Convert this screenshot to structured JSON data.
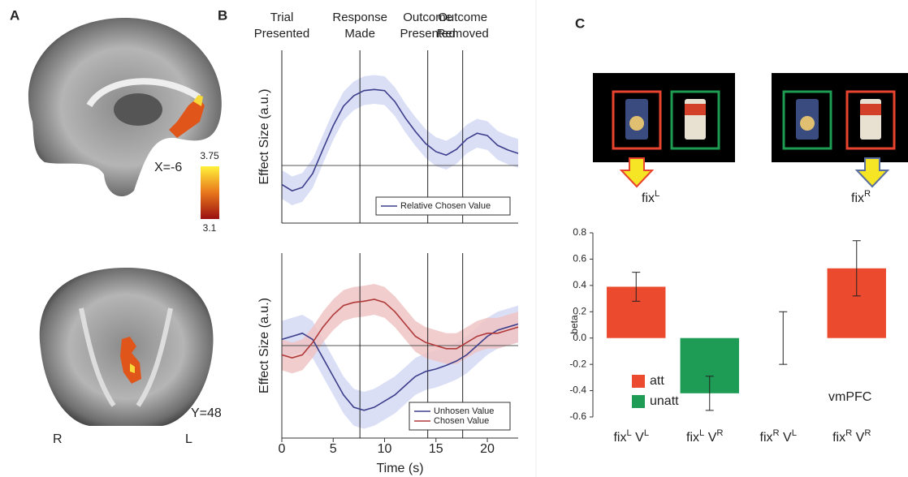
{
  "panel_labels": {
    "a": "A",
    "b": "B",
    "c": "C"
  },
  "brain": {
    "sagittal_label": "X=-6",
    "coronal_label": "Y=48",
    "right": "R",
    "left": "L",
    "colorbar": {
      "max": 3.75,
      "min": 3.1
    }
  },
  "stimuli": [
    {
      "label": [
        "fix",
        "L"
      ]
    },
    {
      "label": [
        "fix",
        "R"
      ]
    }
  ],
  "chart_data": [
    {
      "type": "line",
      "ylabel": "Effect Size (a.u.)",
      "x": [
        0,
        1,
        2,
        3,
        4,
        5,
        6,
        7,
        8,
        9,
        10,
        11,
        12,
        13,
        14,
        15,
        16,
        17,
        18,
        19,
        20,
        21,
        22,
        23
      ],
      "xlim": [
        0,
        23
      ],
      "ylim": [
        -1,
        2
      ],
      "events": [
        {
          "x": 0,
          "label": [
            "Trial",
            "Presented"
          ]
        },
        {
          "x": 7.6,
          "label": [
            "Response",
            "Made"
          ]
        },
        {
          "x": 14.2,
          "label": [
            "Outcome",
            "Presented"
          ]
        },
        {
          "x": 17.6,
          "label": [
            "Outcome",
            "Removed"
          ]
        }
      ],
      "series": [
        {
          "name": "Relative Chosen Value",
          "color": "#3d3f8c",
          "band_color": "#d3d9f4",
          "values": [
            -0.33,
            -0.44,
            -0.38,
            -0.14,
            0.28,
            0.69,
            1.03,
            1.21,
            1.3,
            1.32,
            1.3,
            1.11,
            0.83,
            0.59,
            0.38,
            0.24,
            0.18,
            0.28,
            0.46,
            0.56,
            0.52,
            0.35,
            0.27,
            0.21
          ],
          "errors": [
            0.25,
            0.25,
            0.25,
            0.25,
            0.25,
            0.25,
            0.25,
            0.25,
            0.25,
            0.25,
            0.25,
            0.25,
            0.25,
            0.25,
            0.25,
            0.25,
            0.25,
            0.25,
            0.25,
            0.25,
            0.25,
            0.25,
            0.25,
            0.25
          ]
        }
      ]
    },
    {
      "type": "line",
      "ylabel": "Effect Size (a.u.)",
      "xlabel": "Time (s)",
      "x": [
        0,
        1,
        2,
        3,
        4,
        5,
        6,
        7,
        8,
        9,
        10,
        11,
        12,
        13,
        14,
        15,
        16,
        17,
        18,
        19,
        20,
        21,
        22,
        23
      ],
      "xlim": [
        0,
        23
      ],
      "ylim": [
        -1.5,
        1.5
      ],
      "xticks": [
        0,
        5,
        10,
        15,
        20
      ],
      "event_lines": [
        7.6,
        14.2,
        17.6
      ],
      "series": [
        {
          "name": "Unhosen Value",
          "color": "#3d3f8c",
          "band_color": "#d3d9f4",
          "values": [
            0.1,
            0.15,
            0.2,
            0.1,
            -0.2,
            -0.5,
            -0.8,
            -1.0,
            -1.05,
            -1.0,
            -0.9,
            -0.8,
            -0.65,
            -0.5,
            -0.42,
            -0.38,
            -0.32,
            -0.25,
            -0.15,
            0,
            0.15,
            0.25,
            0.3,
            0.35
          ],
          "errors": [
            0.3,
            0.3,
            0.3,
            0.3,
            0.3,
            0.3,
            0.3,
            0.3,
            0.3,
            0.3,
            0.3,
            0.3,
            0.3,
            0.3,
            0.3,
            0.3,
            0.3,
            0.3,
            0.3,
            0.3,
            0.3,
            0.3,
            0.3,
            0.3
          ]
        },
        {
          "name": "Chosen Value",
          "color": "#b03a3a",
          "band_color": "#efc4c4",
          "values": [
            -0.15,
            -0.2,
            -0.15,
            0.05,
            0.3,
            0.5,
            0.65,
            0.7,
            0.72,
            0.75,
            0.7,
            0.55,
            0.35,
            0.15,
            0.05,
            0,
            -0.05,
            -0.05,
            0.05,
            0.15,
            0.2,
            0.2,
            0.25,
            0.3
          ],
          "errors": [
            0.25,
            0.25,
            0.25,
            0.25,
            0.25,
            0.25,
            0.25,
            0.25,
            0.25,
            0.25,
            0.25,
            0.25,
            0.25,
            0.25,
            0.25,
            0.25,
            0.25,
            0.25,
            0.25,
            0.25,
            0.25,
            0.25,
            0.25,
            0.25
          ]
        }
      ]
    },
    {
      "type": "bar",
      "ylabel": "beta",
      "annotation": "vmPFC",
      "categories": [
        [
          "fix",
          "L",
          " V",
          "L"
        ],
        [
          "fix",
          "L",
          " V",
          "R"
        ],
        [
          "fix",
          "R",
          " V",
          "L"
        ],
        [
          "fix",
          "R",
          " V",
          "R"
        ]
      ],
      "ylim": [
        -0.6,
        0.8
      ],
      "yticks": [
        {
          "value": -0.6,
          "label": "-0.6"
        },
        {
          "value": -0.4,
          "label": "-0.4"
        },
        {
          "value": -0.2,
          "label": "-0.2"
        },
        {
          "value": 0,
          "label": "0.0"
        },
        0.2,
        0.4,
        0.6,
        0.8
      ],
      "series": [
        {
          "name": "att",
          "color": "#ec4a2f",
          "values": [
            0.39,
            null,
            0,
            0.53
          ],
          "errors": [
            0.11,
            null,
            0.2,
            0.21
          ]
        },
        {
          "name": "unatt",
          "color": "#1e9b54",
          "values": [
            null,
            -0.42,
            null,
            null
          ],
          "errors": [
            null,
            0.13,
            null,
            null
          ]
        }
      ]
    }
  ]
}
